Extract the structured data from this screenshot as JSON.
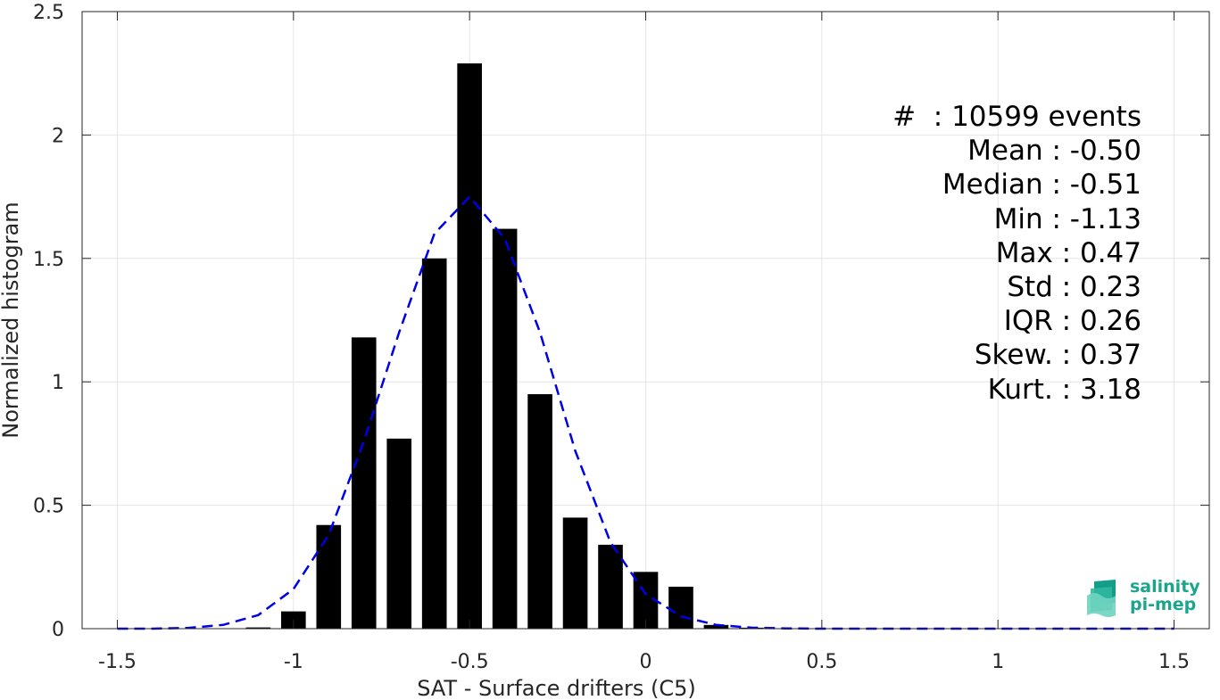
{
  "chart_data": {
    "type": "bar",
    "xlabel": "SAT - Surface drifters (C5)",
    "ylabel": "Normalized histogram",
    "xlim": [
      -1.6,
      1.6
    ],
    "ylim": [
      0,
      2.5
    ],
    "xticks": [
      -1.5,
      -1,
      -0.5,
      0,
      0.5,
      1,
      1.5
    ],
    "xtick_labels": [
      "-1.5",
      "-1",
      "-0.5",
      "0",
      "0.5",
      "1",
      "1.5"
    ],
    "yticks": [
      0,
      0.5,
      1,
      1.5,
      2,
      2.5
    ],
    "ytick_labels": [
      "0",
      "0.5",
      "1",
      "1.5",
      "2",
      "2.5"
    ],
    "grid": true,
    "bar_width": 0.07,
    "bars": {
      "x": [
        -1.1,
        -1.0,
        -0.9,
        -0.8,
        -0.7,
        -0.6,
        -0.5,
        -0.4,
        -0.3,
        -0.2,
        -0.1,
        0.0,
        0.1,
        0.2,
        0.3
      ],
      "values": [
        0.005,
        0.07,
        0.42,
        1.18,
        0.77,
        1.5,
        2.29,
        1.62,
        0.95,
        0.45,
        0.34,
        0.23,
        0.17,
        0.015,
        0.004
      ]
    },
    "fit": {
      "color": "#0000e6",
      "style": "dashed",
      "x": [
        -1.5,
        -1.4,
        -1.3,
        -1.2,
        -1.1,
        -1.0,
        -0.9,
        -0.8,
        -0.7,
        -0.6,
        -0.5,
        -0.4,
        -0.3,
        -0.2,
        -0.1,
        0.0,
        0.1,
        0.2,
        0.3,
        0.4,
        0.5,
        1.0,
        1.5
      ],
      "y": [
        0.0,
        0.0,
        0.003,
        0.015,
        0.055,
        0.16,
        0.38,
        0.76,
        1.2,
        1.6,
        1.75,
        1.58,
        1.2,
        0.72,
        0.35,
        0.14,
        0.05,
        0.015,
        0.004,
        0.001,
        0.0,
        0.0,
        0.0
      ]
    },
    "stats": [
      "#  : 10599 events",
      "Mean : -0.50",
      "Median : -0.51",
      "Min : -1.13",
      "Max : 0.47",
      "Std : 0.23",
      "IQR : 0.26",
      "Skew. : 0.37",
      "Kurt. : 3.18"
    ]
  },
  "logo": {
    "line1": "salinity",
    "line2": "pi-mep",
    "color": "#1aa58c"
  }
}
